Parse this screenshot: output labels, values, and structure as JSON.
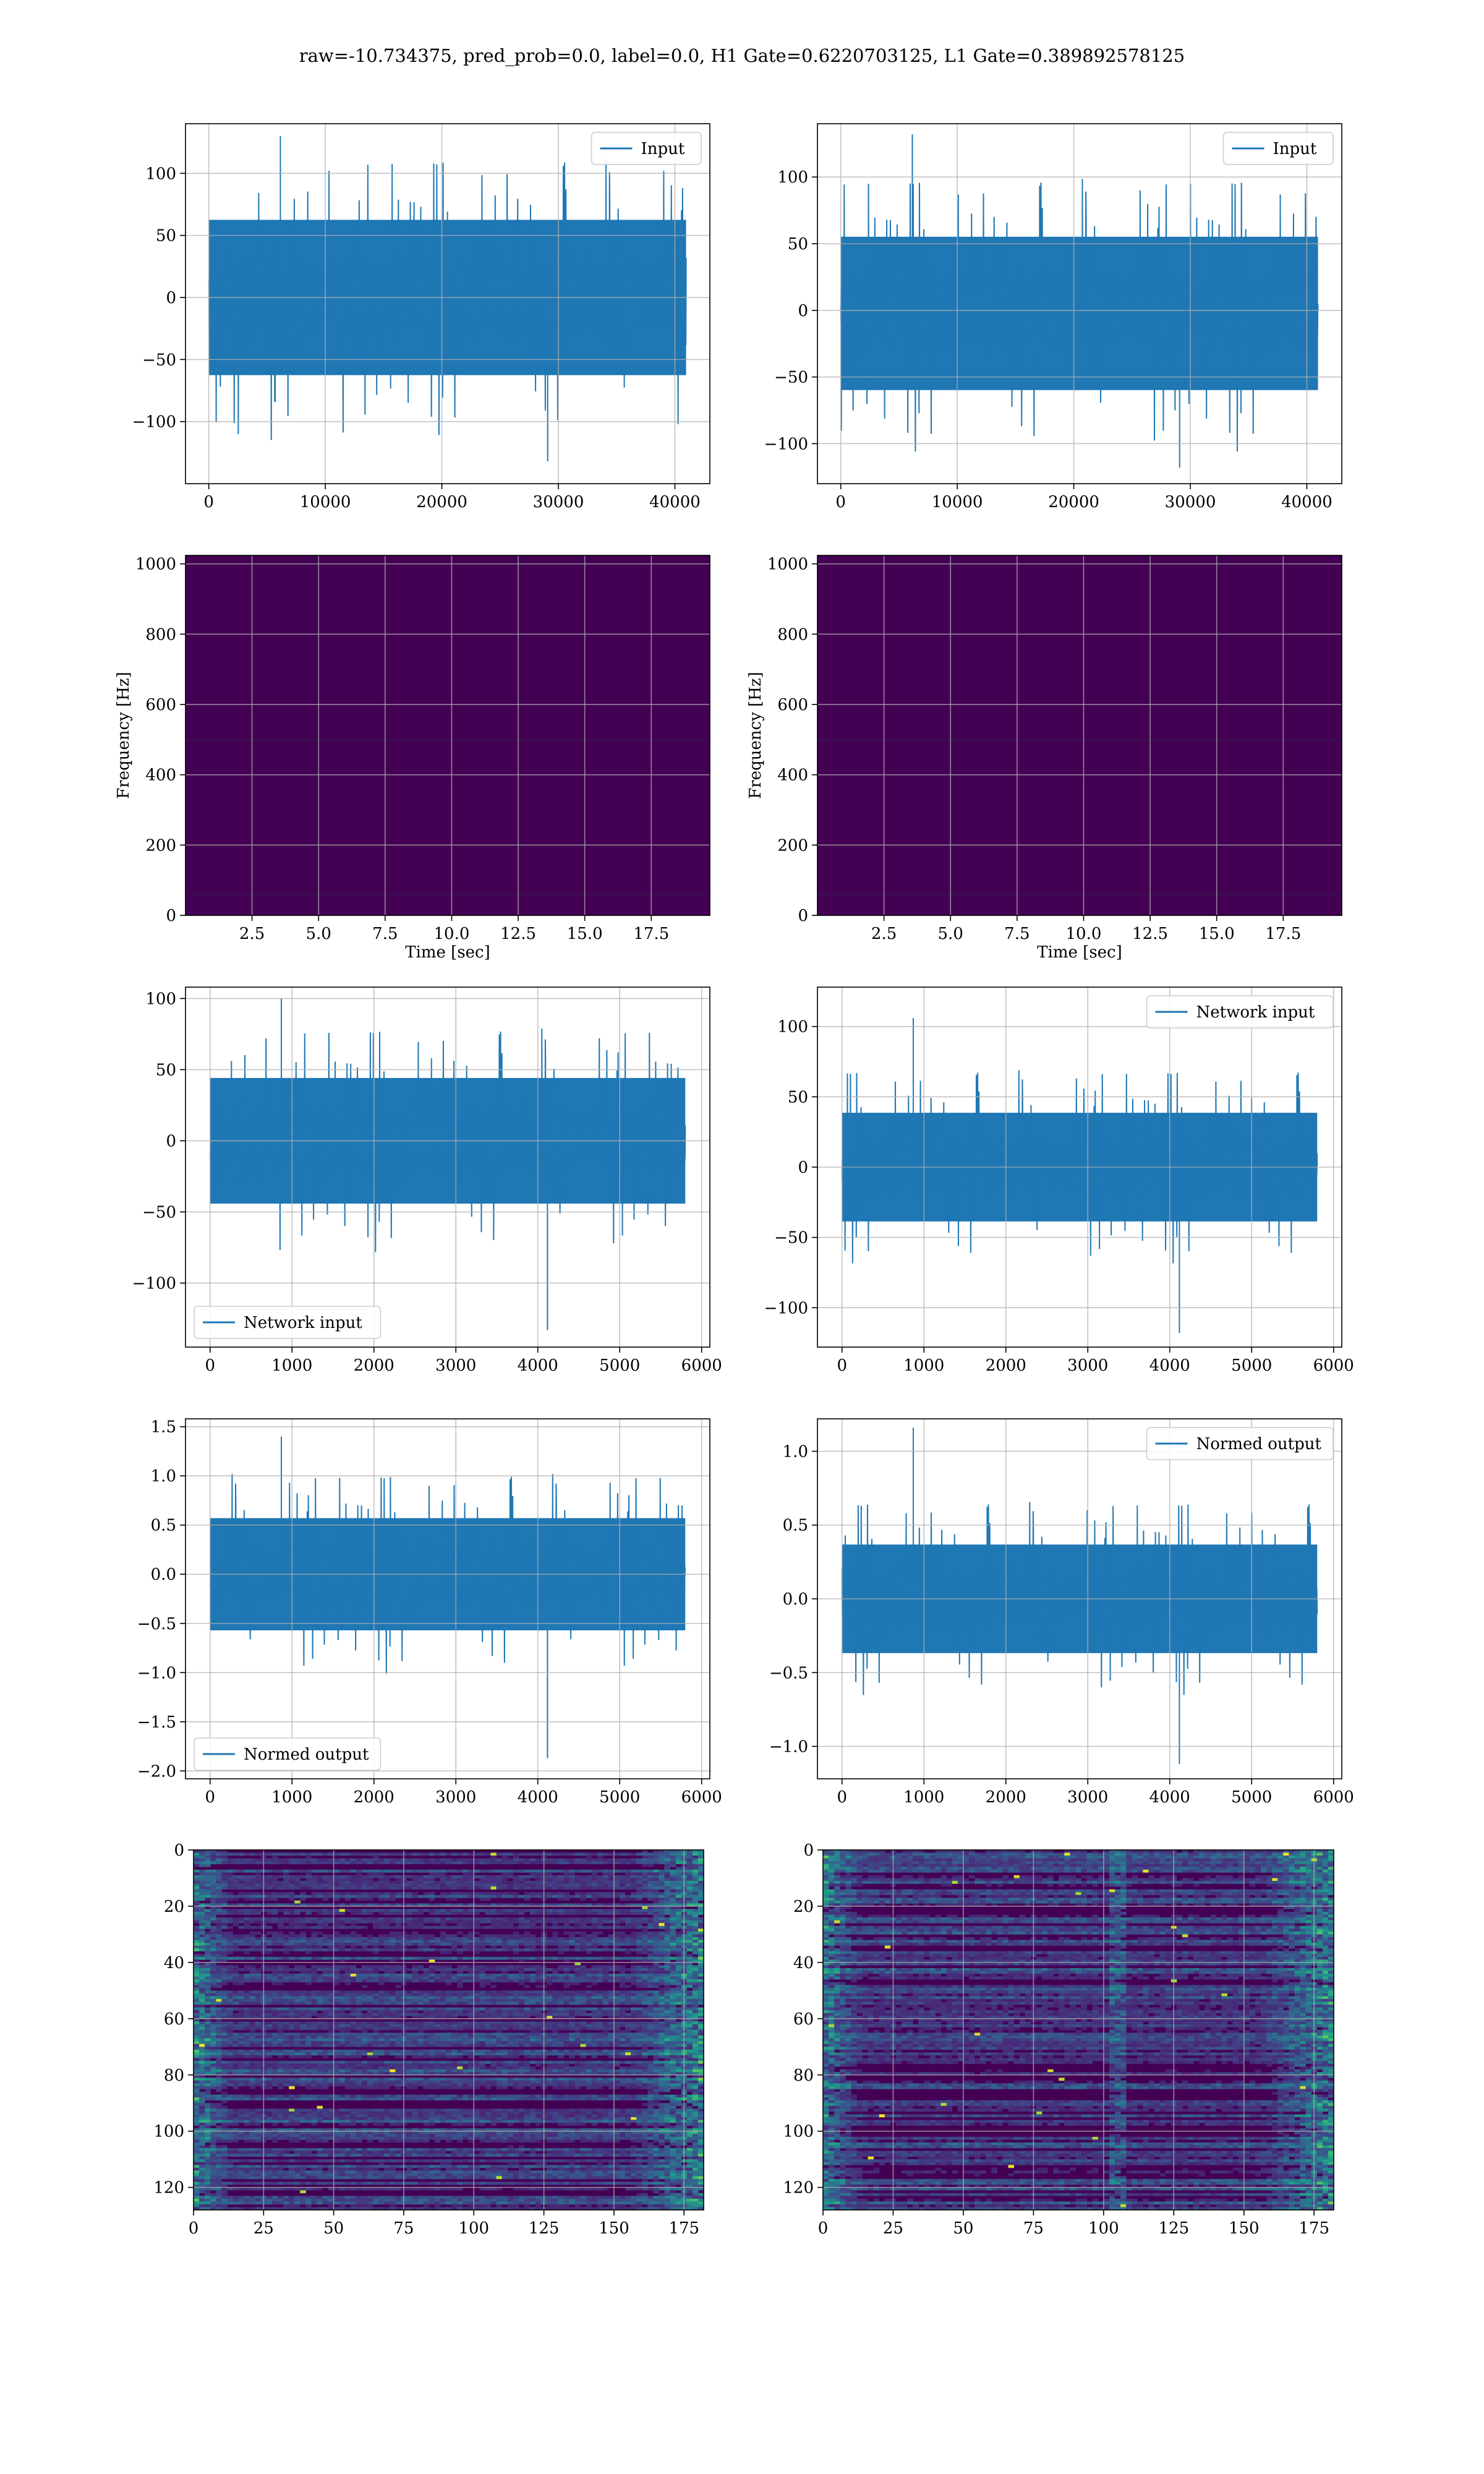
{
  "figure": {
    "suptitle": "raw=-10.734375, pred_prob=0.0, label=0.0, H1 Gate=0.6220703125, L1 Gate=0.389892578125"
  },
  "colors": {
    "series": "#1f77b4",
    "grid": "#b0b0b0",
    "viridis_dark": "#440154",
    "viridis_mid": "#3b528b",
    "viridis_teal": "#21908d",
    "viridis_green": "#5dc962",
    "viridis_yellow": "#fde725"
  },
  "chart_data": [
    {
      "id": "p1",
      "type": "line",
      "legend": "Input",
      "legend_loc": "upper right",
      "xlim": [
        -2000,
        43000
      ],
      "ylim": [
        -150,
        140
      ],
      "xticks": [
        0,
        10000,
        20000,
        30000,
        40000
      ],
      "yticks": [
        -100,
        -50,
        0,
        50,
        100
      ],
      "series": [
        {
          "name": "Input",
          "x_range": [
            0,
            40960
          ],
          "envelope": [
            -68,
            68
          ],
          "peaks": [
            -132,
            130
          ]
        }
      ],
      "xlabel": "",
      "ylabel": "",
      "grid": true
    },
    {
      "id": "p2",
      "type": "line",
      "legend": "Input",
      "legend_loc": "upper right",
      "xlim": [
        -2000,
        43000
      ],
      "ylim": [
        -130,
        140
      ],
      "xticks": [
        0,
        10000,
        20000,
        30000,
        40000
      ],
      "yticks": [
        -100,
        -50,
        0,
        50,
        100
      ],
      "series": [
        {
          "name": "Input",
          "x_range": [
            0,
            40960
          ],
          "envelope": [
            -65,
            60
          ],
          "peaks": [
            -118,
            132
          ]
        }
      ],
      "xlabel": "",
      "ylabel": "",
      "grid": true
    },
    {
      "id": "p3",
      "type": "heatmap",
      "colormap": "viridis",
      "xlim": [
        0,
        19.7
      ],
      "ylim": [
        0,
        1024
      ],
      "xticks": [
        2.5,
        5.0,
        7.5,
        10.0,
        12.5,
        15.0,
        17.5
      ],
      "xtick_labels": [
        "2.5",
        "5.0",
        "7.5",
        "10.0",
        "12.5",
        "15.0",
        "17.5"
      ],
      "yticks": [
        0,
        200,
        400,
        600,
        800,
        1000
      ],
      "xlabel": "Time [sec]",
      "ylabel": "Frequency [Hz]",
      "grid": true
    },
    {
      "id": "p4",
      "type": "heatmap",
      "colormap": "viridis",
      "xlim": [
        0,
        19.7
      ],
      "ylim": [
        0,
        1024
      ],
      "xticks": [
        2.5,
        5.0,
        7.5,
        10.0,
        12.5,
        15.0,
        17.5
      ],
      "xtick_labels": [
        "2.5",
        "5.0",
        "7.5",
        "10.0",
        "12.5",
        "15.0",
        "17.5"
      ],
      "yticks": [
        0,
        200,
        400,
        600,
        800,
        1000
      ],
      "xlabel": "Time [sec]",
      "ylabel": "Frequency [Hz]",
      "grid": true
    },
    {
      "id": "p5",
      "type": "line",
      "legend": "Network input",
      "legend_loc": "lower left",
      "xlim": [
        -300,
        6100
      ],
      "ylim": [
        -145,
        108
      ],
      "xticks": [
        0,
        1000,
        2000,
        3000,
        4000,
        5000,
        6000
      ],
      "yticks": [
        -100,
        -50,
        0,
        50,
        100
      ],
      "series": [
        {
          "name": "Network input",
          "x_range": [
            0,
            5800
          ],
          "envelope": [
            -48,
            48
          ],
          "peaks": [
            -133,
            100
          ]
        }
      ],
      "xlabel": "",
      "ylabel": "",
      "grid": true
    },
    {
      "id": "p6",
      "type": "line",
      "legend": "Network input",
      "legend_loc": "upper right",
      "xlim": [
        -300,
        6100
      ],
      "ylim": [
        -128,
        128
      ],
      "xticks": [
        0,
        1000,
        2000,
        3000,
        4000,
        5000,
        6000
      ],
      "yticks": [
        -100,
        -50,
        0,
        50,
        100
      ],
      "series": [
        {
          "name": "Network input",
          "x_range": [
            0,
            5800
          ],
          "envelope": [
            -42,
            42
          ],
          "peaks": [
            -118,
            106
          ]
        }
      ],
      "xlabel": "",
      "ylabel": "",
      "grid": true
    },
    {
      "id": "p7",
      "type": "line",
      "legend": "Normed output",
      "legend_loc": "lower left",
      "xlim": [
        -300,
        6100
      ],
      "ylim": [
        -2.08,
        1.58
      ],
      "xticks": [
        0,
        1000,
        2000,
        3000,
        4000,
        5000,
        6000
      ],
      "yticks": [
        -2.0,
        -1.5,
        -1.0,
        -0.5,
        0.0,
        0.5,
        1.0,
        1.5
      ],
      "ytick_labels": [
        "−2.0",
        "−1.5",
        "−1.0",
        "−0.5",
        "0.0",
        "0.5",
        "1.0",
        "1.5"
      ],
      "series": [
        {
          "name": "Normed output",
          "x_range": [
            0,
            5800
          ],
          "envelope": [
            -0.62,
            0.62
          ],
          "peaks": [
            -1.87,
            1.4
          ]
        }
      ],
      "xlabel": "",
      "ylabel": "",
      "grid": true
    },
    {
      "id": "p8",
      "type": "line",
      "legend": "Normed output",
      "legend_loc": "upper right",
      "xlim": [
        -300,
        6100
      ],
      "ylim": [
        -1.22,
        1.22
      ],
      "xticks": [
        0,
        1000,
        2000,
        3000,
        4000,
        5000,
        6000
      ],
      "yticks": [
        -1.0,
        -0.5,
        0.0,
        0.5,
        1.0
      ],
      "ytick_labels": [
        "−1.0",
        "−0.5",
        "0.0",
        "0.5",
        "1.0"
      ],
      "series": [
        {
          "name": "Normed output",
          "x_range": [
            0,
            5800
          ],
          "envelope": [
            -0.4,
            0.4
          ],
          "peaks": [
            -1.12,
            1.16
          ]
        }
      ],
      "xlabel": "",
      "ylabel": "",
      "grid": true
    },
    {
      "id": "p9",
      "type": "heatmap",
      "colormap": "viridis",
      "xlim": [
        0,
        182
      ],
      "ylim": [
        128,
        0
      ],
      "y_inverted": true,
      "xticks": [
        0,
        25,
        50,
        75,
        100,
        125,
        150,
        175
      ],
      "yticks": [
        0,
        20,
        40,
        60,
        80,
        100,
        120
      ],
      "xlabel": "",
      "ylabel": "",
      "grid": true
    },
    {
      "id": "p10",
      "type": "heatmap",
      "colormap": "viridis",
      "xlim": [
        0,
        182
      ],
      "ylim": [
        128,
        0
      ],
      "y_inverted": true,
      "xticks": [
        0,
        25,
        50,
        75,
        100,
        125,
        150,
        175
      ],
      "yticks": [
        0,
        20,
        40,
        60,
        80,
        100,
        120
      ],
      "xlabel": "",
      "ylabel": "",
      "grid": true
    }
  ]
}
